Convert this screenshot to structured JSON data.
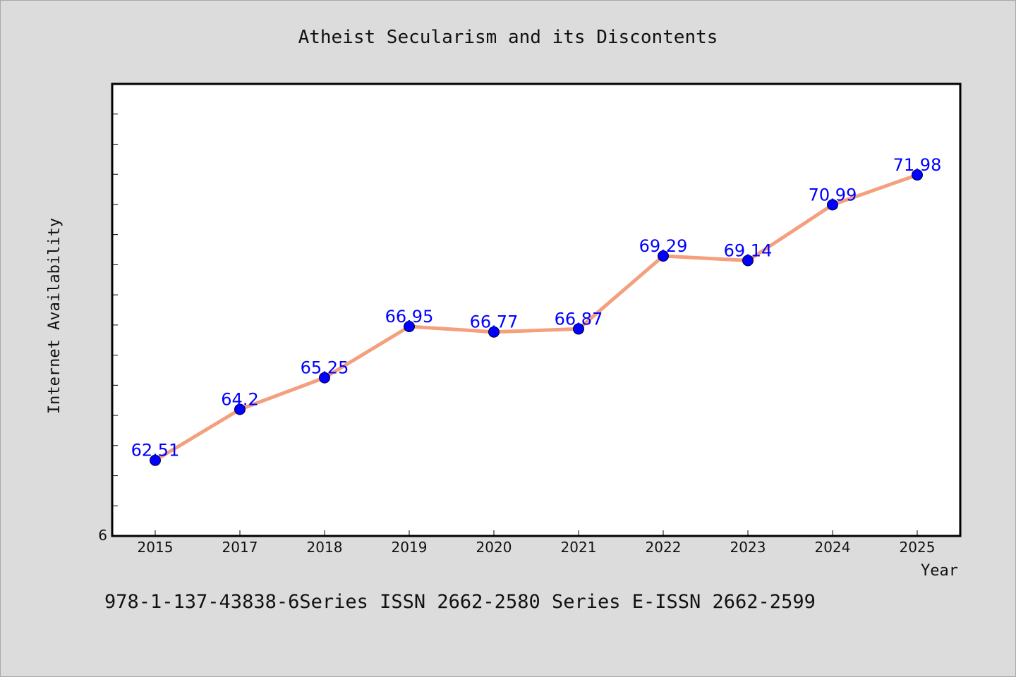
{
  "chart_data": {
    "type": "line",
    "title": "Atheist Secularism and its Discontents",
    "xlabel": "Year",
    "ylabel": "Internet Availability",
    "categories": [
      "2015",
      "2017",
      "2018",
      "2019",
      "2020",
      "2021",
      "2022",
      "2023",
      "2024",
      "2025"
    ],
    "values": [
      62.51,
      64.2,
      65.25,
      66.95,
      66.77,
      66.87,
      69.29,
      69.14,
      70.99,
      71.98
    ],
    "data_labels": [
      "62.51",
      "64.2",
      "65.25",
      "66.95",
      "66.77",
      "66.87",
      "69.29",
      "69.14",
      "70.99",
      "71.98"
    ],
    "y_tick_label": "6",
    "ylim": [
      60.0,
      75.0
    ],
    "grid": false,
    "line_color": "#f4a07f",
    "marker_color": "#0000ff",
    "label_color": "#0000ff"
  },
  "footer_text": "978-1-137-43838-6Series ISSN 2662-2580 Series E-ISSN 2662-2599"
}
